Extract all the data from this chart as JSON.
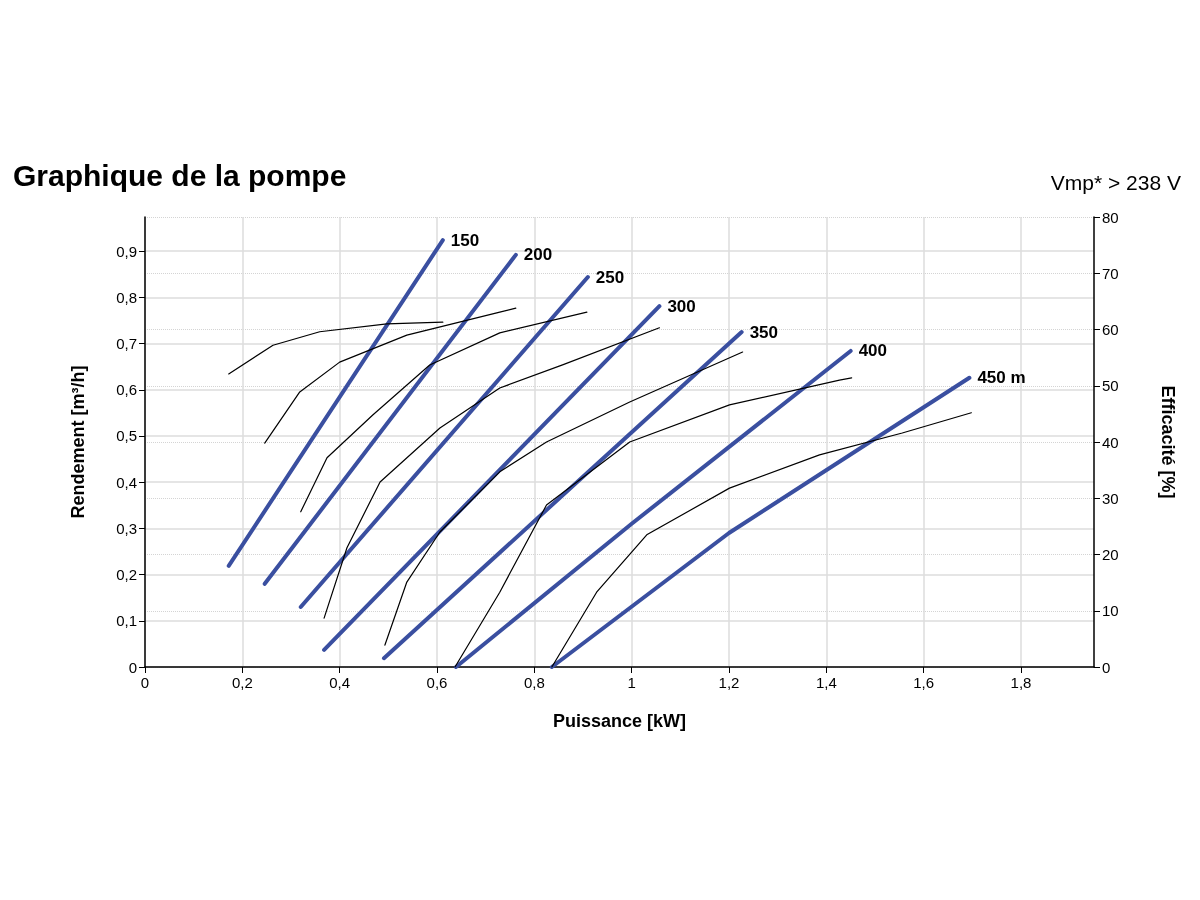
{
  "chart_data": {
    "type": "line",
    "title": "Graphique de la pompe",
    "subtitle": "Vmp* > 238 V",
    "xlabel": "Puissance [kW]",
    "ylabel": "Rendement [m³/h]",
    "y2label": "Efficacité [%]",
    "xlim": [
      0,
      1.95
    ],
    "ylim": [
      0,
      0.974
    ],
    "y2lim": [
      0,
      80
    ],
    "xticks": [
      0,
      {
        "value": 0.2,
        "label": "0,2"
      },
      {
        "value": 0.4,
        "label": "0,4"
      },
      {
        "value": 0.6,
        "label": "0,6"
      },
      {
        "value": 0.8,
        "label": "0,8"
      },
      1,
      {
        "value": 1.2,
        "label": "1,2"
      },
      {
        "value": 1.4,
        "label": "1,4"
      },
      {
        "value": 1.6,
        "label": "1,6"
      },
      {
        "value": 1.8,
        "label": "1,8"
      }
    ],
    "yticks": [
      0,
      {
        "value": 0.1,
        "label": "0,1"
      },
      {
        "value": 0.2,
        "label": "0,2"
      },
      {
        "value": 0.3,
        "label": "0,3"
      },
      {
        "value": 0.4,
        "label": "0,4"
      },
      {
        "value": 0.5,
        "label": "0,5"
      },
      {
        "value": 0.6,
        "label": "0,6"
      },
      {
        "value": 0.7,
        "label": "0,7"
      },
      {
        "value": 0.8,
        "label": "0,8"
      },
      {
        "value": 0.9,
        "label": "0,9"
      }
    ],
    "y2ticks": [
      0,
      10,
      20,
      30,
      40,
      50,
      60,
      70,
      80
    ],
    "grid": true,
    "legend": false,
    "marker": "none",
    "line_style": "solid",
    "series": [
      {
        "name": "150",
        "color": "#3a4fa0",
        "x": [
          0.172,
          0.612
        ],
        "values": [
          0.219,
          0.924
        ]
      },
      {
        "name": "200",
        "color": "#3a4fa0",
        "x": [
          0.246,
          0.762
        ],
        "values": [
          0.18,
          0.892
        ]
      },
      {
        "name": "250",
        "color": "#3a4fa0",
        "x": [
          0.32,
          0.91
        ],
        "values": [
          0.13,
          0.844
        ]
      },
      {
        "name": "300",
        "color": "#3a4fa0",
        "x": [
          0.368,
          1.057
        ],
        "values": [
          0.037,
          0.781
        ]
      },
      {
        "name": "350",
        "color": "#3a4fa0",
        "x": [
          0.491,
          1.226
        ],
        "values": [
          0.019,
          0.725
        ]
      },
      {
        "name": "400",
        "color": "#3a4fa0",
        "x": [
          0.639,
          1.0,
          1.45
        ],
        "values": [
          0,
          0.31,
          0.684
        ]
      },
      {
        "name": "450 m",
        "color": "#3a4fa0",
        "x": [
          0.836,
          1.2,
          1.694
        ],
        "values": [
          0,
          0.29,
          0.626
        ]
      },
      {
        "color": "#000000",
        "axis": "y2",
        "x": [
          0.172,
          0.263,
          0.359,
          0.497,
          0.612
        ],
        "values": [
          52.1,
          57.2,
          59.6,
          61.0,
          61.3
        ]
      },
      {
        "color": "#000000",
        "axis": "y2",
        "x": [
          0.246,
          0.318,
          0.4,
          0.538,
          0.729,
          0.762
        ],
        "values": [
          39.8,
          48.9,
          54.2,
          59.0,
          63.1,
          63.8
        ]
      },
      {
        "color": "#000000",
        "axis": "y2",
        "x": [
          0.32,
          0.374,
          0.468,
          0.585,
          0.729,
          0.908
        ],
        "values": [
          27.6,
          37.2,
          44.8,
          53.7,
          59.4,
          63.1
        ]
      },
      {
        "color": "#000000",
        "axis": "y2",
        "x": [
          0.368,
          0.415,
          0.483,
          0.606,
          0.729,
          0.858,
          1.057
        ],
        "values": [
          8.7,
          21.2,
          32.9,
          42.5,
          49.6,
          53.7,
          60.3
        ]
      },
      {
        "color": "#000000",
        "axis": "y2",
        "x": [
          0.493,
          0.538,
          0.606,
          0.729,
          0.825,
          0.996,
          1.228
        ],
        "values": [
          3.9,
          15.1,
          24.0,
          34.7,
          40.0,
          47.1,
          56.0
        ]
      },
      {
        "color": "#000000",
        "axis": "y2",
        "x": [
          0.637,
          0.729,
          0.825,
          0.996,
          1.201,
          1.427,
          1.452
        ],
        "values": [
          0,
          13.3,
          28.8,
          40.0,
          46.6,
          51.0,
          51.4
        ]
      },
      {
        "color": "#000000",
        "axis": "y2",
        "x": [
          0.836,
          0.928,
          1.031,
          1.201,
          1.386,
          1.556,
          1.698
        ],
        "values": [
          0,
          13.3,
          23.5,
          31.8,
          37.7,
          41.6,
          45.2
        ]
      }
    ]
  }
}
